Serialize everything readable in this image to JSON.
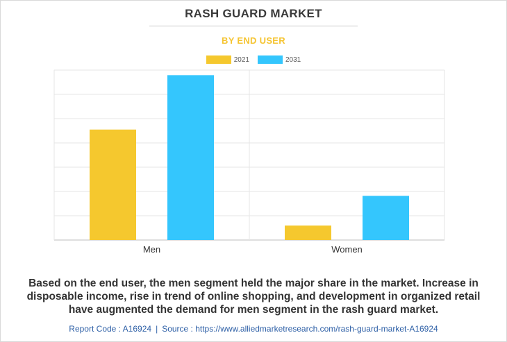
{
  "header": {
    "title": "RASH GUARD MARKET",
    "subtitle": "BY END USER"
  },
  "colors": {
    "series_2021": "#f5c82e",
    "series_2031": "#34c6fd",
    "subtitle": "#f5c431",
    "footer": "#2d5fa6"
  },
  "chart_data": {
    "type": "bar",
    "categories": [
      "Men",
      "Women"
    ],
    "series": [
      {
        "name": "2021",
        "values": [
          6.5,
          0.85
        ]
      },
      {
        "name": "2031",
        "values": [
          9.7,
          2.6
        ]
      }
    ],
    "ylim": [
      0,
      10
    ],
    "grid": true,
    "legend": "top-center",
    "title": "RASH GUARD MARKET",
    "subtitle": "BY END USER",
    "xlabel": "",
    "ylabel": ""
  },
  "description": "Based on the end user, the men segment held the major share in the market. Increase in disposable income, rise in trend of online shopping, and development in organized retail have augmented the demand for men segment in the rash guard market.",
  "footer": {
    "report_code": "Report Code : A16924",
    "separator": "|",
    "source": "Source : https://www.alliedmarketresearch.com/rash-guard-market-A16924"
  }
}
